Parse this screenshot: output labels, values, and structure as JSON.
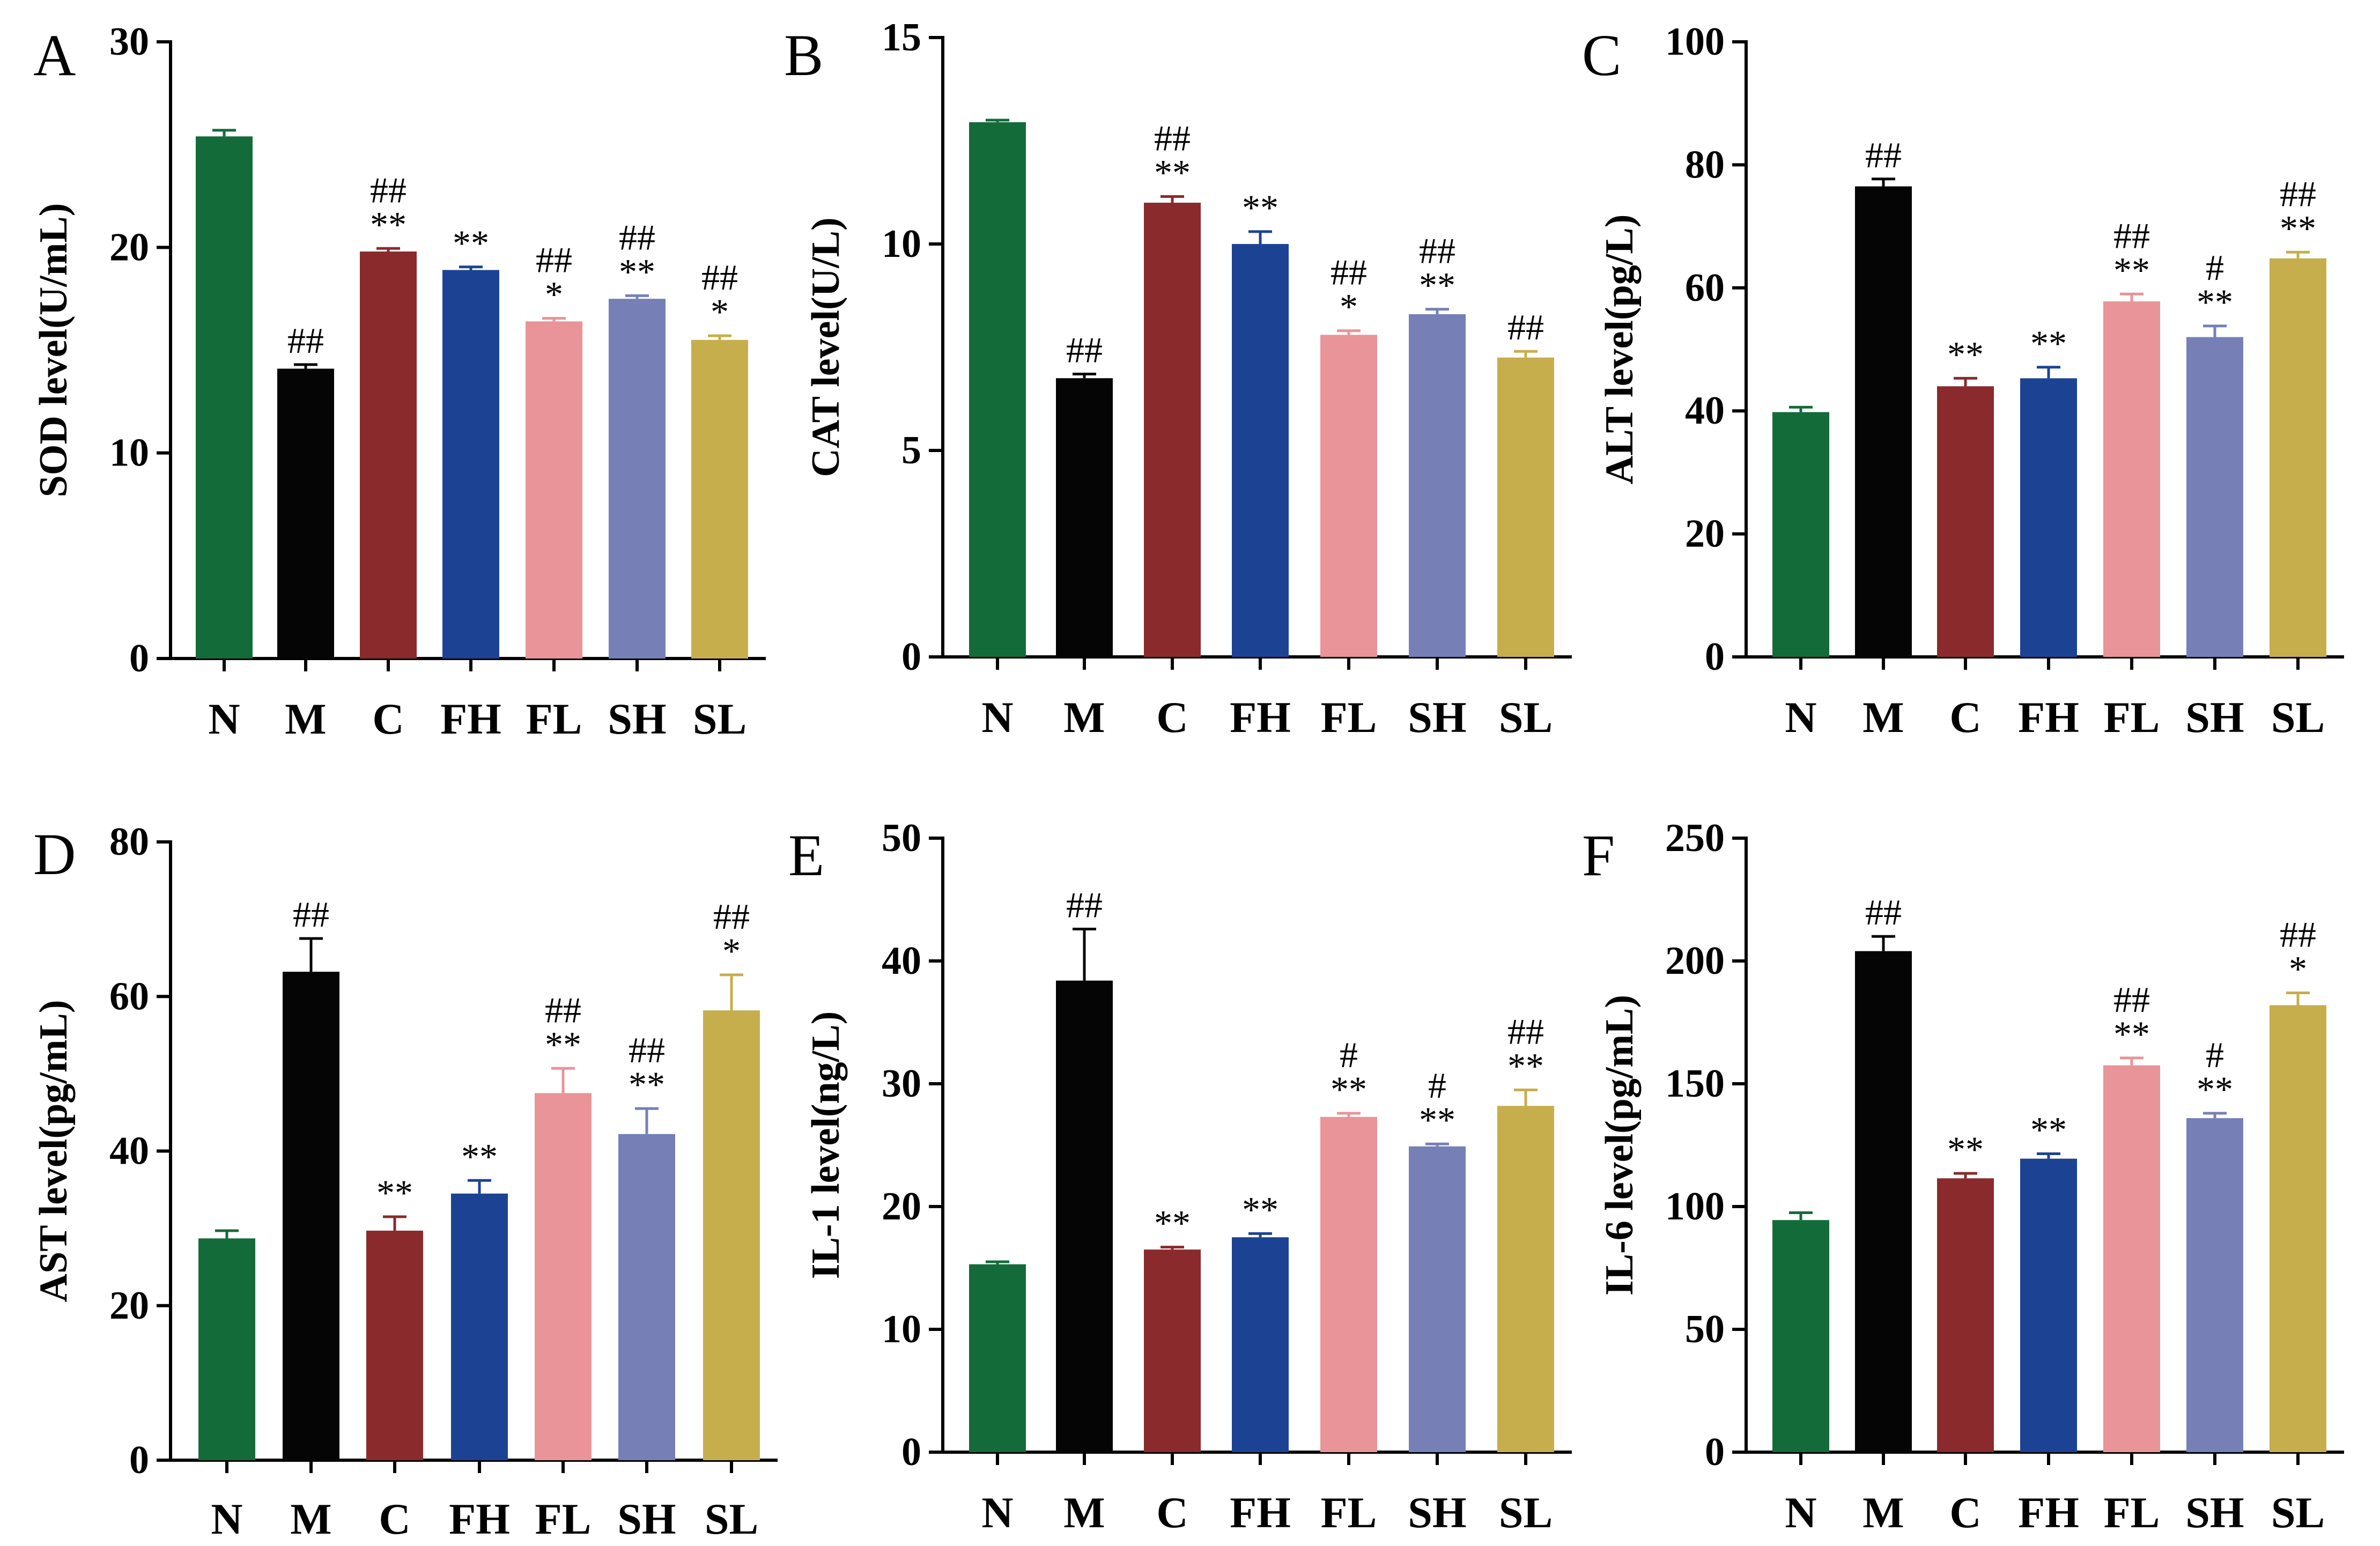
{
  "palette": {
    "N": "#146b3a",
    "M": "#050505",
    "C": "#8a2a2d",
    "FH": "#1c4393",
    "FL": "#e89498",
    "SH": "#7680b6",
    "SL": "#c7ae4d"
  },
  "chart_data": [
    {
      "panel": "A",
      "type": "bar",
      "ylabel": "SOD level(U/mL)",
      "categories": [
        "N",
        "M",
        "C",
        "FH",
        "FL",
        "SH",
        "SL"
      ],
      "values": [
        25.4,
        14.1,
        19.8,
        18.9,
        16.4,
        17.5,
        15.5
      ],
      "errors": [
        0.3,
        0.2,
        0.15,
        0.15,
        0.15,
        0.15,
        0.2
      ],
      "significance": [
        [],
        [
          "##"
        ],
        [
          "##",
          "**"
        ],
        [
          "**"
        ],
        [
          "##",
          "*"
        ],
        [
          "##",
          "**"
        ],
        [
          "##",
          "*"
        ]
      ],
      "ylim": [
        0,
        30
      ],
      "yticks": [
        0,
        10,
        20,
        30
      ]
    },
    {
      "panel": "B",
      "type": "bar",
      "ylabel": "CAT level(U/L)",
      "categories": [
        "N",
        "M",
        "C",
        "FH",
        "FL",
        "SH",
        "SL"
      ],
      "values": [
        12.95,
        6.75,
        11.0,
        10.0,
        7.8,
        8.3,
        7.25
      ],
      "errors": [
        0.05,
        0.1,
        0.15,
        0.3,
        0.1,
        0.12,
        0.15
      ],
      "significance": [
        [],
        [
          "##"
        ],
        [
          "##",
          "**"
        ],
        [
          "**"
        ],
        [
          "##",
          "*"
        ],
        [
          "##",
          "**"
        ],
        [
          "##"
        ]
      ],
      "ylim": [
        0,
        15
      ],
      "yticks": [
        0,
        5,
        10,
        15
      ]
    },
    {
      "panel": "C",
      "type": "bar",
      "ylabel": "ALT level(pg/L)",
      "categories": [
        "N",
        "M",
        "C",
        "FH",
        "FL",
        "SH",
        "SL"
      ],
      "values": [
        39.8,
        76.5,
        44.0,
        45.3,
        57.8,
        52.0,
        64.8
      ],
      "errors": [
        0.8,
        1.2,
        1.3,
        1.8,
        1.2,
        1.8,
        1.0
      ],
      "significance": [
        [],
        [
          "##"
        ],
        [
          "**"
        ],
        [
          "**"
        ],
        [
          "##",
          "**"
        ],
        [
          "#",
          "**"
        ],
        [
          "##",
          "**"
        ]
      ],
      "ylim": [
        0,
        100
      ],
      "yticks": [
        0,
        20,
        40,
        60,
        80,
        100
      ]
    },
    {
      "panel": "D",
      "type": "bar",
      "ylabel": "AST level(pg/mL)",
      "categories": [
        "N",
        "M",
        "C",
        "FH",
        "FL",
        "SH",
        "SL"
      ],
      "values": [
        28.7,
        63.2,
        29.7,
        34.5,
        47.5,
        42.2,
        58.2
      ],
      "errors": [
        1.0,
        4.3,
        1.8,
        1.7,
        3.2,
        3.3,
        4.6
      ],
      "significance": [
        [],
        [
          "##"
        ],
        [
          "**"
        ],
        [
          "**"
        ],
        [
          "##",
          "**"
        ],
        [
          "##",
          "**"
        ],
        [
          "##",
          "*"
        ]
      ],
      "ylim": [
        0,
        80
      ],
      "yticks": [
        0,
        20,
        40,
        60,
        80
      ]
    },
    {
      "panel": "E",
      "type": "bar",
      "ylabel": "IL-1 level(ng/L)",
      "categories": [
        "N",
        "M",
        "C",
        "FH",
        "FL",
        "SH",
        "SL"
      ],
      "values": [
        15.3,
        38.4,
        16.5,
        17.5,
        27.3,
        24.9,
        28.2
      ],
      "errors": [
        0.2,
        4.2,
        0.2,
        0.3,
        0.3,
        0.2,
        1.3
      ],
      "significance": [
        [],
        [
          "##"
        ],
        [
          "**"
        ],
        [
          "**"
        ],
        [
          "#",
          "**"
        ],
        [
          "#",
          "**"
        ],
        [
          "##",
          "**"
        ]
      ],
      "ylim": [
        0,
        50
      ],
      "yticks": [
        0,
        10,
        20,
        30,
        40,
        50
      ]
    },
    {
      "panel": "F",
      "type": "bar",
      "ylabel": "IL-6 level(pg/mL)",
      "categories": [
        "N",
        "M",
        "C",
        "FH",
        "FL",
        "SH",
        "SL"
      ],
      "values": [
        94.5,
        204.0,
        111.5,
        119.5,
        157.5,
        136.0,
        182.0
      ],
      "errors": [
        3.0,
        6.0,
        2.0,
        2.0,
        3.0,
        2.0,
        5.0
      ],
      "significance": [
        [],
        [
          "##"
        ],
        [
          "**"
        ],
        [
          "**"
        ],
        [
          "##",
          "**"
        ],
        [
          "#",
          "**"
        ],
        [
          "##",
          "*"
        ]
      ],
      "ylim": [
        0,
        250
      ],
      "yticks": [
        0,
        50,
        100,
        150,
        200,
        250
      ]
    }
  ]
}
